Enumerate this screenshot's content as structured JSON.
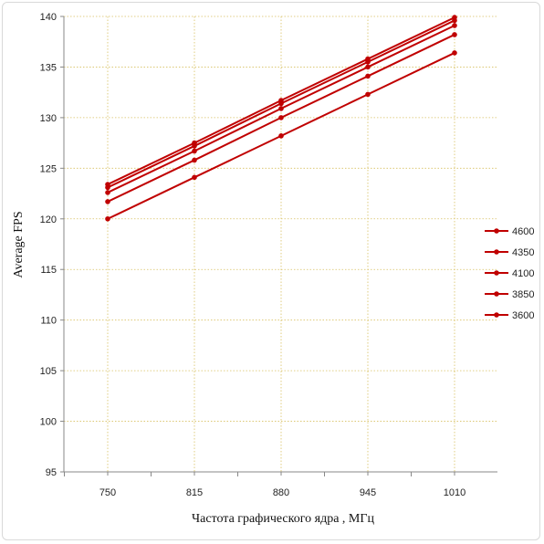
{
  "chart_data": {
    "type": "line",
    "title": "",
    "xlabel": "Частота графического ядра , МГц",
    "ylabel": "Average FPS",
    "categories": [
      "750",
      "815",
      "880",
      "945",
      "1010"
    ],
    "ylim": [
      95,
      140
    ],
    "yticks": [
      95,
      100,
      105,
      110,
      115,
      120,
      125,
      130,
      135,
      140
    ],
    "grid": true,
    "legend_position": "right",
    "series_color": "#c00000",
    "series": [
      {
        "name": "4600",
        "values": [
          123.4,
          127.5,
          131.7,
          135.8,
          139.9
        ]
      },
      {
        "name": "4350",
        "values": [
          123.1,
          127.2,
          131.4,
          135.5,
          139.6
        ]
      },
      {
        "name": "4100",
        "values": [
          122.6,
          126.7,
          130.9,
          135.0,
          139.1
        ]
      },
      {
        "name": "3850",
        "values": [
          121.7,
          125.8,
          130.0,
          134.1,
          138.2
        ]
      },
      {
        "name": "3600",
        "values": [
          120.0,
          124.1,
          128.2,
          132.3,
          136.4
        ]
      }
    ]
  }
}
